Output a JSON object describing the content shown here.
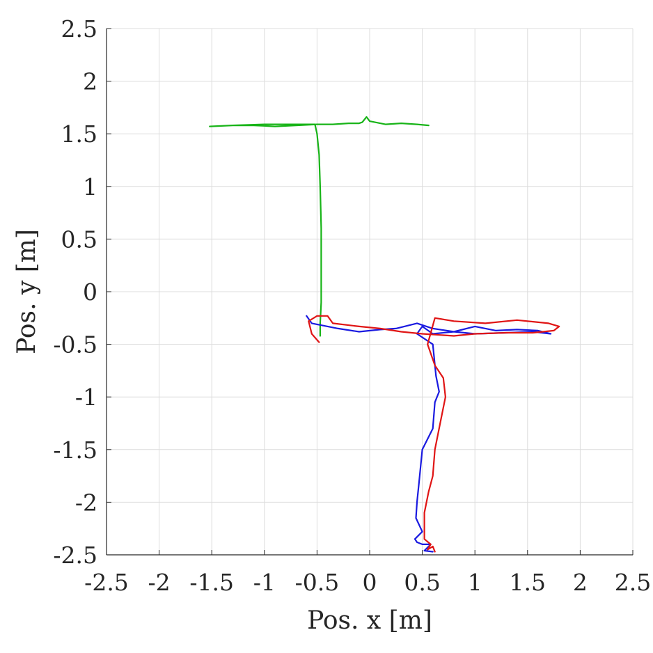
{
  "chart_data": {
    "type": "line",
    "title": "",
    "xlabel": "Pos. x [m]",
    "ylabel": "Pos. y [m]",
    "xlim": [
      -2.5,
      2.5
    ],
    "ylim": [
      -2.5,
      2.5
    ],
    "xticks": [
      -2.5,
      -2,
      -1.5,
      -1,
      -0.5,
      0,
      0.5,
      1,
      1.5,
      2,
      2.5
    ],
    "yticks": [
      -2.5,
      -2,
      -1.5,
      -1,
      -0.5,
      0,
      0.5,
      1,
      1.5,
      2,
      2.5
    ],
    "xtick_labels": [
      "-2.5",
      "-2",
      "-1.5",
      "-1",
      "-0.5",
      "0",
      "0.5",
      "1",
      "1.5",
      "2",
      "2.5"
    ],
    "ytick_labels": [
      "-2.5",
      "-2",
      "-1.5",
      "-1",
      "-0.5",
      "0",
      "0.5",
      "1",
      "1.5",
      "2",
      "2.5"
    ],
    "grid": true,
    "series": [
      {
        "color": "#18b418",
        "x": [
          0.56,
          0.45,
          0.3,
          0.15,
          0.0,
          -0.03,
          -0.07,
          -0.1,
          -0.2,
          -0.35,
          -0.5,
          -0.7,
          -0.9,
          -1.1,
          -1.3,
          -1.52,
          -1.3,
          -1.0,
          -0.7,
          -0.52,
          -0.5,
          -0.48,
          -0.47,
          -0.46,
          -0.46,
          -0.46,
          -0.47,
          -0.47
        ],
        "y": [
          1.58,
          1.59,
          1.6,
          1.59,
          1.62,
          1.66,
          1.61,
          1.6,
          1.6,
          1.59,
          1.59,
          1.58,
          1.57,
          1.58,
          1.58,
          1.57,
          1.58,
          1.59,
          1.59,
          1.59,
          1.5,
          1.3,
          1.0,
          0.6,
          0.2,
          -0.1,
          -0.3,
          -0.42
        ]
      },
      {
        "color": "#1a1ae0",
        "x": [
          -0.6,
          -0.55,
          -0.45,
          -0.3,
          -0.1,
          0.1,
          0.25,
          0.45,
          0.6,
          0.8,
          1.0,
          1.2,
          1.4,
          1.6,
          1.72,
          1.55,
          1.3,
          1.0,
          0.8,
          0.6,
          0.5,
          0.45,
          0.6,
          0.63,
          0.66,
          0.62,
          0.6,
          0.5,
          0.47,
          0.45,
          0.44,
          0.5,
          0.43,
          0.45,
          0.5,
          0.58,
          0.52,
          0.6
        ],
        "y": [
          -0.23,
          -0.3,
          -0.32,
          -0.35,
          -0.38,
          -0.36,
          -0.35,
          -0.3,
          -0.35,
          -0.38,
          -0.33,
          -0.37,
          -0.36,
          -0.37,
          -0.4,
          -0.38,
          -0.39,
          -0.4,
          -0.38,
          -0.4,
          -0.33,
          -0.4,
          -0.5,
          -0.8,
          -0.95,
          -1.05,
          -1.3,
          -1.5,
          -1.8,
          -2.0,
          -2.15,
          -2.28,
          -2.35,
          -2.38,
          -2.4,
          -2.4,
          -2.46,
          -2.47
        ]
      },
      {
        "color": "#e01515",
        "x": [
          -0.48,
          -0.55,
          -0.58,
          -0.5,
          -0.4,
          -0.35,
          -0.1,
          0.1,
          0.3,
          0.5,
          0.8,
          1.0,
          1.3,
          1.55,
          1.75,
          1.8,
          1.7,
          1.4,
          1.1,
          0.8,
          0.62,
          0.55,
          0.62,
          0.7,
          0.72,
          0.68,
          0.62,
          0.6,
          0.56,
          0.52,
          0.52,
          0.58,
          0.55,
          0.6,
          0.62
        ],
        "y": [
          -0.48,
          -0.4,
          -0.28,
          -0.23,
          -0.23,
          -0.3,
          -0.33,
          -0.35,
          -0.38,
          -0.4,
          -0.42,
          -0.4,
          -0.39,
          -0.39,
          -0.37,
          -0.33,
          -0.3,
          -0.27,
          -0.3,
          -0.28,
          -0.25,
          -0.5,
          -0.7,
          -0.82,
          -1.0,
          -1.2,
          -1.5,
          -1.75,
          -1.9,
          -2.1,
          -2.35,
          -2.4,
          -2.45,
          -2.42,
          -2.47
        ]
      }
    ]
  }
}
